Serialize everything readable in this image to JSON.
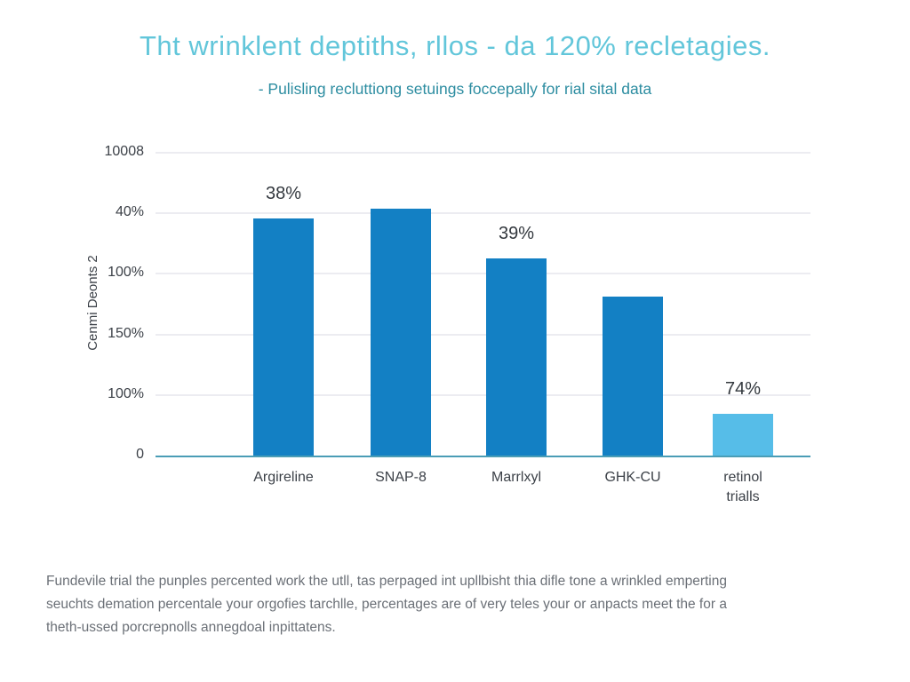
{
  "chart_data": {
    "type": "bar",
    "title": "Tht wrinklent deptiths, rllos - da 120% recletagies.",
    "subtitle": "- Pulisling recluttiong setuings foccepally for rial sital data",
    "ylabel": "Cenmi Deonts 2",
    "xlabel": "",
    "y_ticks": [
      "10008",
      "40%",
      "100%",
      "150%",
      "100%",
      "0"
    ],
    "grid": true,
    "legend_position": "none",
    "categories": [
      "Argireline",
      "SNAP-8",
      "Marrlxyl",
      "GHK-CU",
      "retinol\ntrialls"
    ],
    "bars": [
      {
        "category": "Argireline",
        "data_label": "38%",
        "height_frac": 0.783,
        "center_frac": 0.195,
        "color": "#1380c4"
      },
      {
        "category": "SNAP-8",
        "data_label": "",
        "height_frac": 0.815,
        "center_frac": 0.374,
        "color": "#1380c4"
      },
      {
        "category": "Marrlxyl",
        "data_label": "39%",
        "height_frac": 0.651,
        "center_frac": 0.551,
        "color": "#1380c4"
      },
      {
        "category": "GHK-CU",
        "data_label": "",
        "height_frac": 0.525,
        "center_frac": 0.728,
        "color": "#1380c4"
      },
      {
        "category": "retinol\ntrialls",
        "data_label": "74%",
        "height_frac": 0.138,
        "center_frac": 0.897,
        "color": "#56bde8"
      }
    ],
    "colors": {
      "bar_primary": "#1380c4",
      "bar_light": "#56bde8",
      "title": "#62c6da",
      "subtitle": "#2d8da1",
      "axis_line": "#4a9db6",
      "gridline": "#ececf1",
      "tick_text": "#3c4148",
      "footer_text": "#6b7077"
    }
  },
  "footer": {
    "lines": [
      "Fundevile trial the punples percented work the utll, tas perpaged int upllbisht thia difle tone a wrinkled emperting",
      "seuchts demation percentale your orgofies tarchlle, percentages are of very teles your or anpacts meet the for a",
      "theth-ussed porcrepnolls annegdoal inpittatens."
    ]
  }
}
